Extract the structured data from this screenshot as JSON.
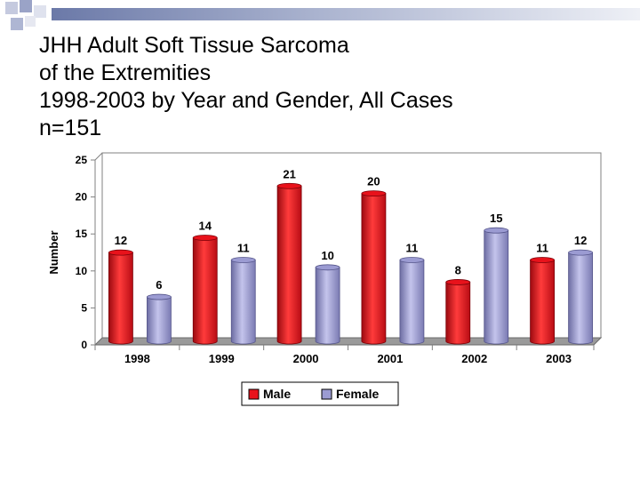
{
  "slide": {
    "title_lines": [
      "JHH Adult Soft Tissue Sarcoma",
      "of the Extremities",
      "1998-2003 by Year and Gender, All Cases",
      "n=151"
    ]
  },
  "chart_data": {
    "type": "bar",
    "title": "",
    "ylabel": "Number",
    "xlabel": "",
    "categories": [
      "1998",
      "1999",
      "2000",
      "2001",
      "2002",
      "2003"
    ],
    "series": [
      {
        "name": "Male",
        "values": [
          12,
          14,
          21,
          20,
          8,
          11
        ]
      },
      {
        "name": "Female",
        "values": [
          6,
          11,
          10,
          11,
          15,
          12
        ]
      }
    ],
    "ylim": [
      0,
      25
    ],
    "yticks": [
      0,
      5,
      10,
      15,
      20,
      25
    ],
    "grid": false,
    "legend": "bottom-center",
    "colors": {
      "Male": "#e8121b",
      "Female": "#9b9bd2"
    },
    "three_d": true
  }
}
